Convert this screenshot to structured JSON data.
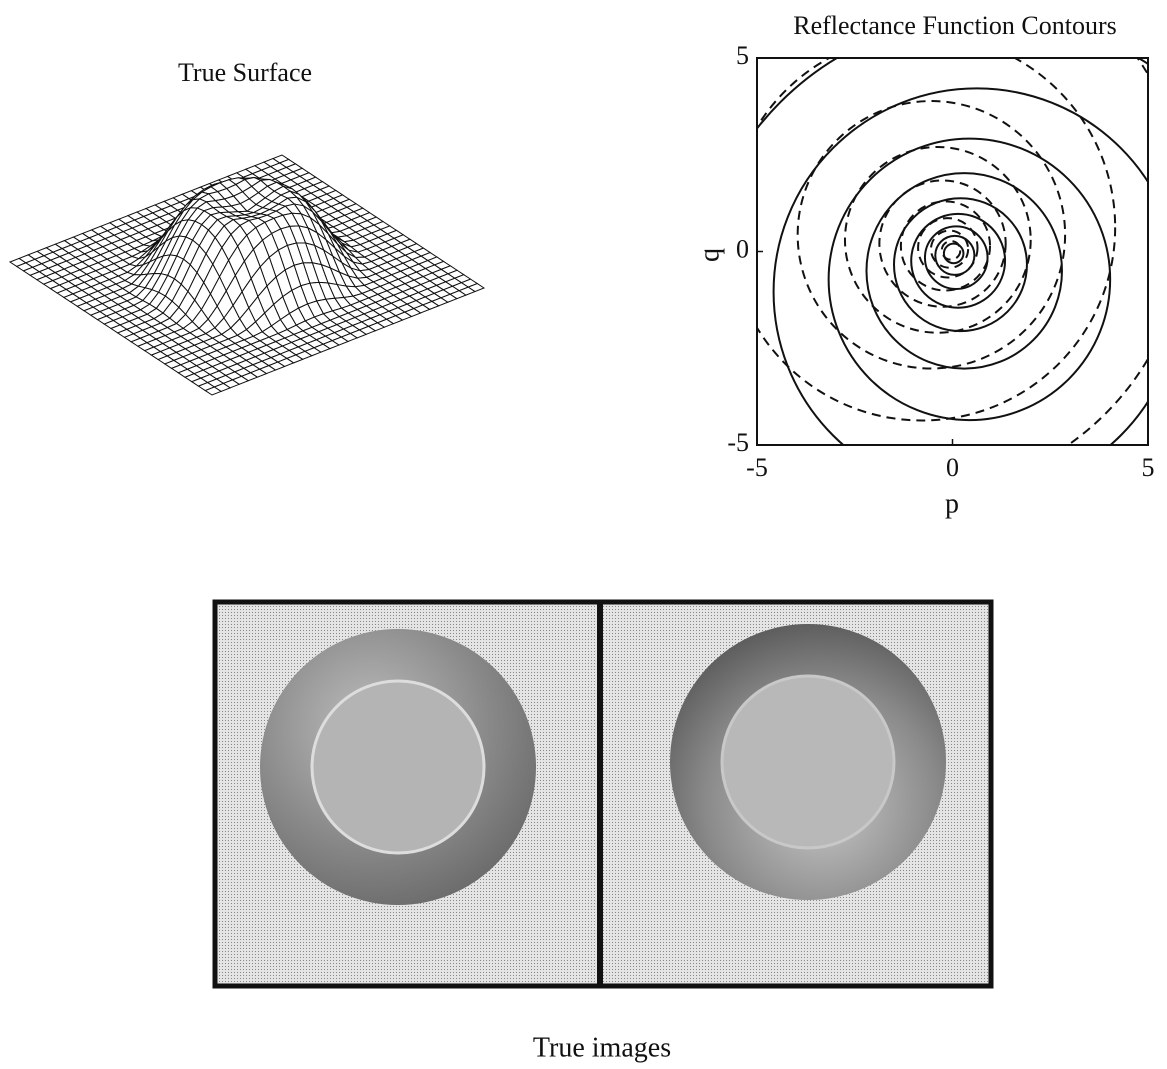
{
  "surface": {
    "title": "True Surface"
  },
  "contour_plot": {
    "title": "Reflectance Function Contours",
    "xlabel": "p",
    "ylabel": "q",
    "xlim": [
      -5,
      5
    ],
    "ylim": [
      -5,
      5
    ],
    "xticks": [
      -5,
      0,
      5
    ],
    "yticks": [
      -5,
      0,
      5
    ]
  },
  "images": {
    "caption": "True images"
  }
}
